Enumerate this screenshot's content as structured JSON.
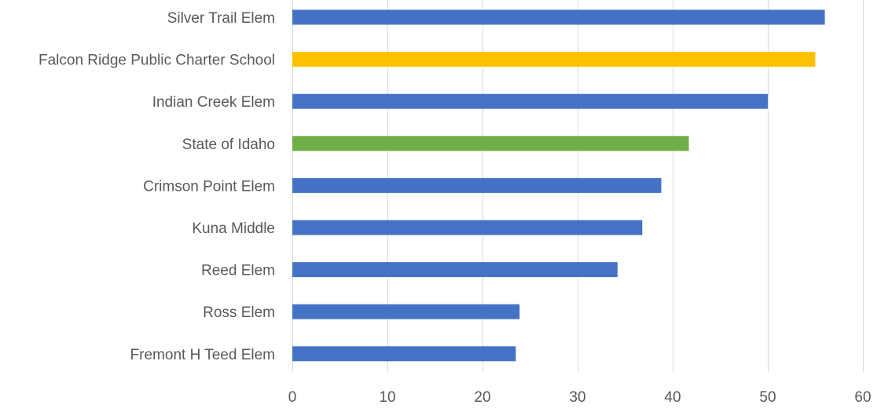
{
  "chart_data": {
    "type": "bar",
    "orientation": "horizontal",
    "categories": [
      "Silver Trail Elem",
      "Falcon Ridge Public Charter School",
      "Indian Creek Elem",
      "State of Idaho",
      "Crimson Point Elem",
      "Kuna Middle",
      "Reed Elem",
      "Ross Elem",
      "Fremont H Teed Elem"
    ],
    "values": [
      56,
      55,
      50,
      41.7,
      38.8,
      36.8,
      34.2,
      23.9,
      23.5
    ],
    "bar_colors": [
      "#4472C4",
      "#FFC000",
      "#4472C4",
      "#70AD47",
      "#4472C4",
      "#4472C4",
      "#4472C4",
      "#4472C4",
      "#4472C4"
    ],
    "xlim": [
      0,
      60
    ],
    "xticks": [
      0,
      10,
      20,
      30,
      40,
      50,
      60
    ],
    "grid": "vertical",
    "title": "",
    "xlabel": "",
    "ylabel": ""
  }
}
